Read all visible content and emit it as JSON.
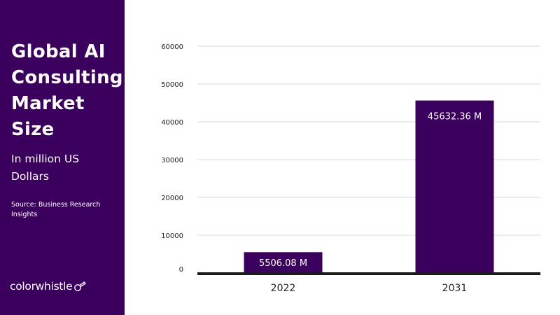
{
  "sidebar": {
    "title": "Global AI Consulting Market Size",
    "subtitle": "In million US Dollars",
    "source": "Source: Business Research Insights",
    "logo_text": "colorwhistle",
    "logo_icon": "whistle-icon",
    "bg_color": "#3b005e"
  },
  "chart_data": {
    "type": "bar",
    "categories": [
      "2022",
      "2031"
    ],
    "values": [
      5506.08,
      45632.36
    ],
    "data_labels": [
      "5506.08 M",
      "45632.36 M"
    ],
    "y_ticks": [
      0,
      10000,
      20000,
      30000,
      40000,
      50000,
      60000
    ],
    "ylim": [
      0,
      60000
    ],
    "grid": true,
    "bar_color": "#3b005e",
    "title": "",
    "xlabel": "",
    "ylabel": ""
  }
}
